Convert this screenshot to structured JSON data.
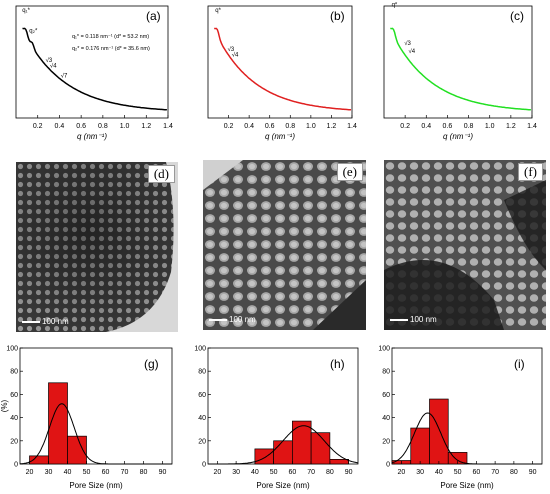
{
  "saxs": [
    {
      "label": "(a)",
      "color": "#000000",
      "xlabel": "q (nm⁻¹)",
      "xlim": [
        0,
        1.4
      ],
      "xticks": [
        0.2,
        0.4,
        0.6,
        0.8,
        1.0,
        1.2,
        1.4
      ],
      "annotations": [
        "q₁*",
        "q₂*",
        "√3",
        "√4",
        "√7"
      ],
      "notes": [
        "q₁* = 0.118 nm⁻¹ (d* = 53.2 nm)",
        "q₂* = 0.176 nm⁻¹ (d* = 35.6 nm)"
      ]
    },
    {
      "label": "(b)",
      "color": "#e02020",
      "xlabel": "q (nm⁻¹)",
      "xlim": [
        0,
        1.4
      ],
      "xticks": [
        0.2,
        0.4,
        0.6,
        0.8,
        1.0,
        1.2,
        1.4
      ],
      "annotations": [
        "q*",
        "√3",
        "√4"
      ],
      "notes": []
    },
    {
      "label": "(c)",
      "color": "#22e022",
      "xlabel": "q (nm⁻¹)",
      "xlim": [
        0,
        1.4
      ],
      "xticks": [
        0.2,
        0.4,
        0.6,
        0.8,
        1.0,
        1.2,
        1.4
      ],
      "annotations": [
        "q*",
        "√3",
        "√4"
      ],
      "notes": []
    }
  ],
  "tem": [
    {
      "label": "(d)",
      "scale": "100 nm"
    },
    {
      "label": "(e)",
      "scale": "100 nm"
    },
    {
      "label": "(f)",
      "scale": "100 nm"
    }
  ],
  "chart_data": [
    {
      "type": "bar",
      "label": "(g)",
      "xlabel": "Pore Size  (nm)",
      "ylabel": "(%)",
      "xlim": [
        15,
        95
      ],
      "ylim": [
        0,
        100
      ],
      "xticks": [
        20,
        30,
        40,
        50,
        60,
        70,
        80,
        90
      ],
      "yticks": [
        0,
        20,
        40,
        60,
        80,
        100
      ],
      "bin_width": 10,
      "x": [
        25,
        35,
        45
      ],
      "values": [
        7,
        70,
        24
      ],
      "fit": {
        "mu": 37,
        "sigma": 6.5,
        "amp": 52
      }
    },
    {
      "type": "bar",
      "label": "(h)",
      "xlabel": "Pore Size  (nm)",
      "ylabel": "",
      "xlim": [
        15,
        95
      ],
      "ylim": [
        0,
        100
      ],
      "xticks": [
        20,
        30,
        40,
        50,
        60,
        70,
        80,
        90
      ],
      "yticks": [
        0,
        20,
        40,
        60,
        80,
        100
      ],
      "bin_width": 10,
      "x": [
        45,
        55,
        65,
        75,
        85
      ],
      "values": [
        13,
        20,
        37,
        27,
        4
      ],
      "fit": {
        "mu": 66,
        "sigma": 11,
        "amp": 33
      }
    },
    {
      "type": "bar",
      "label": "(i)",
      "xlabel": "Pore Size  (nm)",
      "ylabel": "",
      "xlim": [
        15,
        95
      ],
      "ylim": [
        0,
        100
      ],
      "xticks": [
        20,
        30,
        40,
        50,
        60,
        70,
        80,
        90
      ],
      "yticks": [
        0,
        20,
        40,
        60,
        80,
        100
      ],
      "bin_width": 10,
      "x": [
        20,
        30,
        40,
        50
      ],
      "values": [
        3,
        31,
        56,
        10
      ],
      "fit": {
        "mu": 34,
        "sigma": 7,
        "amp": 44
      }
    }
  ]
}
